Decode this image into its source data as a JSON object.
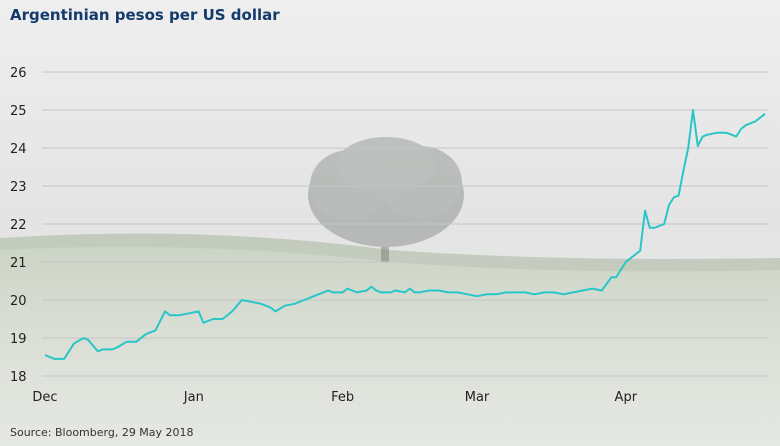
{
  "title": "Argentinian pesos per US dollar",
  "source": "Source: Bloomberg, 29 May 2018",
  "colors": {
    "line": "#29c6c9",
    "title": "#123a6b",
    "grid": "#c4c6c5"
  },
  "chart_data": {
    "type": "line",
    "title": "Argentinian pesos per US dollar",
    "xlabel": "",
    "ylabel": "",
    "ylim": [
      18,
      26
    ],
    "yticks": [
      18,
      19,
      20,
      21,
      22,
      23,
      24,
      25,
      26
    ],
    "grid": true,
    "x_ticks": [
      {
        "label": "Dec",
        "day": 0
      },
      {
        "label": "Jan",
        "day": 31
      },
      {
        "label": "Feb",
        "day": 62
      },
      {
        "label": "Mar",
        "day": 90
      },
      {
        "label": "Apr",
        "day": 121
      }
    ],
    "series": [
      {
        "x": [
          0,
          2,
          4,
          6,
          8,
          9,
          11,
          12,
          14,
          15,
          17,
          19,
          21,
          23,
          25,
          26,
          28,
          30,
          32,
          33,
          35,
          36,
          37,
          39,
          41,
          43,
          45,
          47,
          48,
          50,
          52,
          54,
          56,
          58,
          59,
          60,
          62,
          63,
          64,
          65,
          67,
          68,
          69,
          70,
          72,
          73,
          75,
          76,
          77,
          78,
          80,
          82,
          84,
          86,
          88,
          90,
          92,
          94,
          96,
          98,
          100,
          102,
          104,
          106,
          108,
          110,
          112,
          114,
          116,
          118,
          119,
          120,
          121,
          124,
          125,
          126,
          127,
          129,
          130,
          131,
          132,
          133,
          134,
          135,
          136,
          137,
          138,
          140,
          142,
          143,
          144,
          145,
          146,
          148,
          149,
          150
        ],
        "values": [
          18.55,
          18.45,
          18.45,
          18.85,
          19.0,
          18.95,
          18.65,
          18.7,
          18.7,
          18.75,
          18.9,
          18.9,
          19.1,
          19.2,
          19.7,
          19.6,
          19.6,
          19.65,
          19.7,
          19.4,
          19.5,
          19.5,
          19.5,
          19.7,
          20.0,
          19.95,
          19.9,
          19.8,
          19.7,
          19.85,
          19.9,
          20.0,
          20.1,
          20.2,
          20.25,
          20.2,
          20.2,
          20.3,
          20.25,
          20.2,
          20.25,
          20.35,
          20.25,
          20.2,
          20.2,
          20.25,
          20.2,
          20.3,
          20.2,
          20.2,
          20.25,
          20.25,
          20.2,
          20.2,
          20.15,
          20.1,
          20.15,
          20.15,
          20.2,
          20.2,
          20.2,
          20.15,
          20.2,
          20.2,
          20.15,
          20.2,
          20.25,
          20.3,
          20.25,
          20.6,
          20.6,
          20.8,
          21.0,
          21.3,
          22.35,
          21.9,
          21.9,
          22.0,
          22.5,
          22.7,
          22.75,
          23.4,
          24.0,
          25.0,
          24.05,
          24.3,
          24.35,
          24.4,
          24.4,
          24.35,
          24.3,
          24.5,
          24.6,
          24.7,
          24.8,
          24.9
        ]
      }
    ]
  }
}
